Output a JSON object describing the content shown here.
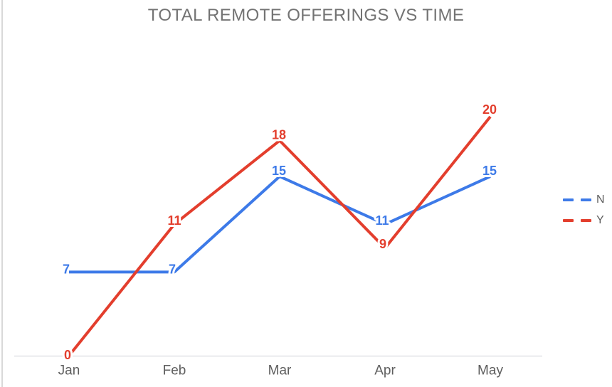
{
  "window": {
    "background_color": "#ffffff",
    "left_border_color": "#d9d9d9"
  },
  "chart_data": {
    "type": "line",
    "title": "TOTAL REMOTE OFFERINGS VS TIME",
    "title_color": "#737373",
    "categories": [
      "Jan",
      "Feb",
      "Mar",
      "Apr",
      "May"
    ],
    "series": [
      {
        "name": "N",
        "color": "#3d7ae8",
        "values": [
          7,
          7,
          15,
          11,
          15
        ],
        "label_offsets": [
          [
            -4,
            -4
          ],
          [
            -3,
            -4
          ],
          [
            -1,
            -8
          ],
          [
            -4,
            -5
          ],
          [
            -1,
            -8
          ]
        ]
      },
      {
        "name": "Y",
        "color": "#e33e2d",
        "values": [
          0,
          11,
          18,
          9,
          20
        ],
        "label_offsets": [
          [
            -2,
            -1
          ],
          [
            0,
            -5
          ],
          [
            -1,
            -8
          ],
          [
            -3,
            -6
          ],
          [
            -1,
            -10
          ]
        ]
      }
    ],
    "xlabel": "",
    "ylabel": "",
    "ylim": [
      0,
      20
    ],
    "grid": false,
    "data_labels": true,
    "line_style": "solid",
    "legend_position": "right",
    "legend_marker_style": "dashed",
    "axis_line_color": "#dadce0",
    "tick_label_color": "#5e5e5e",
    "legend_text_color": "#5e5e5e"
  }
}
